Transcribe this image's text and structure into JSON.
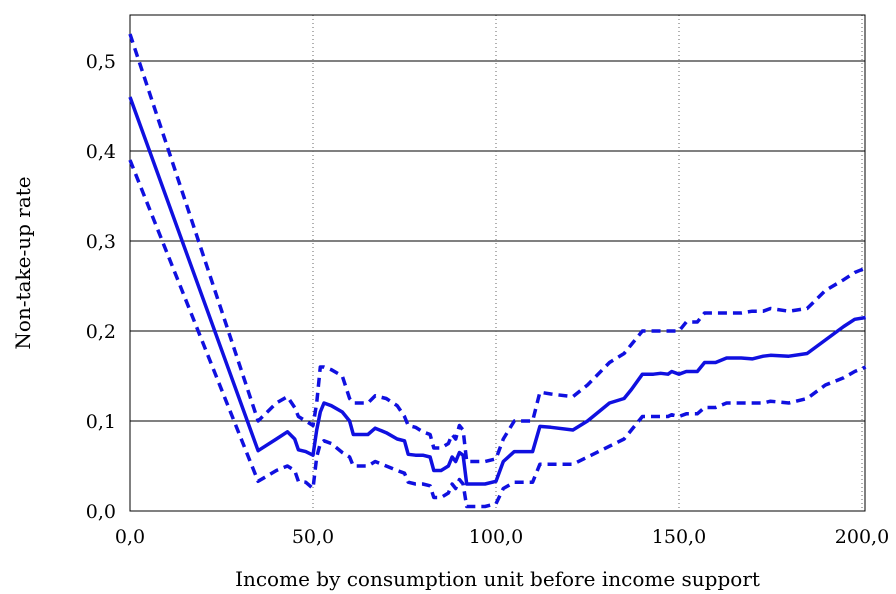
{
  "chart_data": {
    "type": "line",
    "title": "",
    "xlabel": "Income by consumption unit before income support",
    "ylabel": "Non-take-up rate",
    "xlim": [
      0,
      200
    ],
    "ylim": [
      0,
      0.5
    ],
    "x_ticks": [
      0,
      50,
      100,
      150,
      200
    ],
    "x_tick_labels": [
      "0,0",
      "50,0",
      "100,0",
      "150,0",
      "200,0"
    ],
    "y_ticks": [
      0,
      0.1,
      0.2,
      0.3,
      0.4,
      0.5
    ],
    "y_tick_labels": [
      "0,0",
      "0,1",
      "0,2",
      "0,3",
      "0,4",
      "0,5"
    ],
    "grid": {
      "horizontal": "solid",
      "vertical": "dotted"
    },
    "series_color": "#1010e0",
    "series": [
      {
        "style": "solid",
        "x": [
          0,
          35,
          40,
          43,
          45,
          46,
          48,
          50,
          51,
          52,
          53,
          55,
          58,
          60,
          61,
          63,
          65,
          67,
          70,
          73,
          75,
          76,
          78,
          80,
          82,
          83,
          85,
          87,
          88,
          89,
          90,
          91,
          92,
          93,
          95,
          97,
          100,
          102,
          105,
          107,
          110,
          112,
          115,
          121,
          125,
          131,
          135,
          137,
          140,
          143,
          145,
          147,
          148,
          150,
          152,
          155,
          157,
          160,
          163,
          165,
          167,
          170,
          173,
          175,
          180,
          185,
          190,
          195,
          198,
          201
        ],
        "y": [
          0.46,
          0.067,
          0.08,
          0.088,
          0.08,
          0.068,
          0.066,
          0.062,
          0.09,
          0.11,
          0.12,
          0.117,
          0.11,
          0.1,
          0.085,
          0.085,
          0.085,
          0.092,
          0.087,
          0.08,
          0.078,
          0.063,
          0.062,
          0.062,
          0.06,
          0.045,
          0.045,
          0.05,
          0.06,
          0.055,
          0.065,
          0.062,
          0.03,
          0.03,
          0.03,
          0.03,
          0.033,
          0.055,
          0.066,
          0.066,
          0.066,
          0.094,
          0.093,
          0.09,
          0.1,
          0.12,
          0.125,
          0.135,
          0.152,
          0.152,
          0.153,
          0.152,
          0.155,
          0.152,
          0.155,
          0.155,
          0.165,
          0.165,
          0.17,
          0.17,
          0.17,
          0.169,
          0.172,
          0.173,
          0.172,
          0.175,
          0.19,
          0.205,
          0.213,
          0.215
        ]
      },
      {
        "style": "dashed",
        "x": [
          0,
          35,
          40,
          43,
          45,
          46,
          48,
          50,
          51,
          52,
          53,
          55,
          58,
          60,
          61,
          63,
          65,
          67,
          70,
          73,
          75,
          76,
          78,
          80,
          82,
          83,
          85,
          87,
          88,
          89,
          90,
          91,
          92,
          93,
          95,
          97,
          100,
          102,
          105,
          107,
          110,
          112,
          115,
          121,
          125,
          131,
          135,
          137,
          140,
          143,
          145,
          147,
          148,
          150,
          152,
          155,
          157,
          160,
          163,
          165,
          167,
          170,
          173,
          175,
          180,
          185,
          190,
          195,
          198,
          201
        ],
        "y": [
          0.53,
          0.1,
          0.12,
          0.127,
          0.115,
          0.105,
          0.1,
          0.095,
          0.12,
          0.16,
          0.16,
          0.157,
          0.15,
          0.125,
          0.12,
          0.12,
          0.12,
          0.128,
          0.125,
          0.117,
          0.105,
          0.095,
          0.093,
          0.088,
          0.085,
          0.07,
          0.07,
          0.075,
          0.085,
          0.08,
          0.095,
          0.09,
          0.055,
          0.055,
          0.055,
          0.055,
          0.058,
          0.08,
          0.1,
          0.1,
          0.1,
          0.132,
          0.13,
          0.127,
          0.14,
          0.165,
          0.175,
          0.185,
          0.2,
          0.2,
          0.2,
          0.2,
          0.2,
          0.2,
          0.21,
          0.21,
          0.22,
          0.22,
          0.22,
          0.22,
          0.22,
          0.222,
          0.222,
          0.225,
          0.222,
          0.225,
          0.245,
          0.257,
          0.265,
          0.27
        ]
      },
      {
        "style": "dashed",
        "x": [
          0,
          35,
          40,
          43,
          45,
          46,
          48,
          50,
          51,
          52,
          53,
          55,
          58,
          60,
          61,
          63,
          65,
          67,
          70,
          73,
          75,
          76,
          78,
          80,
          82,
          83,
          85,
          87,
          88,
          89,
          90,
          91,
          92,
          93,
          95,
          97,
          100,
          102,
          105,
          107,
          110,
          112,
          115,
          121,
          125,
          131,
          135,
          137,
          140,
          143,
          145,
          147,
          148,
          150,
          152,
          155,
          157,
          160,
          163,
          165,
          167,
          170,
          173,
          175,
          180,
          185,
          190,
          195,
          198,
          201
        ],
        "y": [
          0.39,
          0.033,
          0.045,
          0.05,
          0.045,
          0.033,
          0.032,
          0.025,
          0.06,
          0.075,
          0.078,
          0.075,
          0.065,
          0.06,
          0.05,
          0.05,
          0.05,
          0.055,
          0.05,
          0.045,
          0.042,
          0.032,
          0.03,
          0.03,
          0.028,
          0.015,
          0.015,
          0.02,
          0.03,
          0.025,
          0.035,
          0.03,
          0.005,
          0.005,
          0.005,
          0.005,
          0.008,
          0.025,
          0.032,
          0.032,
          0.032,
          0.052,
          0.052,
          0.052,
          0.06,
          0.072,
          0.08,
          0.09,
          0.105,
          0.105,
          0.105,
          0.105,
          0.107,
          0.105,
          0.108,
          0.108,
          0.115,
          0.115,
          0.12,
          0.12,
          0.12,
          0.12,
          0.12,
          0.122,
          0.12,
          0.125,
          0.14,
          0.148,
          0.155,
          0.16
        ]
      }
    ]
  }
}
